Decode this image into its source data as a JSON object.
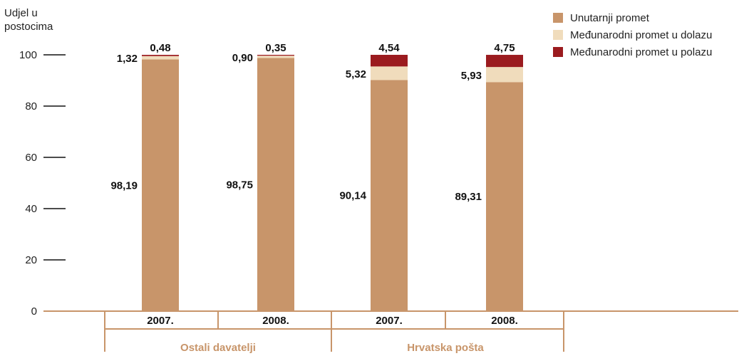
{
  "chart_data": {
    "type": "bar",
    "stacked": true,
    "title": "",
    "ylabel_lines": [
      "Udjel u",
      "postocima"
    ],
    "ylim": [
      0,
      100
    ],
    "yticks": [
      "0",
      "20",
      "40",
      "60",
      "80",
      "100"
    ],
    "categories": [
      "2007.",
      "2008.",
      "2007.",
      "2008."
    ],
    "groups": [
      {
        "label": "Ostali davatelji",
        "categories": [
          "2007.",
          "2008."
        ]
      },
      {
        "label": "Hrvatska pošta",
        "categories": [
          "2007.",
          "2008."
        ]
      }
    ],
    "series": [
      {
        "name": "Unutarnji promet",
        "color": "#c8956a",
        "values": [
          98.19,
          98.75,
          90.14,
          89.31
        ],
        "labels": [
          "98,19",
          "98,75",
          "90,14",
          "89,31"
        ]
      },
      {
        "name": "Međunarodni promet u dolazu",
        "color": "#f0dcbc",
        "values": [
          1.32,
          0.9,
          5.32,
          5.93
        ],
        "labels": [
          "1,32",
          "0,90",
          "5,32",
          "5,93"
        ]
      },
      {
        "name": "Međunarodni promet u polazu",
        "color": "#9b1b1f",
        "values": [
          0.48,
          0.35,
          4.54,
          4.75
        ],
        "labels": [
          "0,48",
          "0,35",
          "4,54",
          "4,75"
        ]
      }
    ],
    "legend_position": "top-right",
    "axis_color": "#c8956a",
    "group_label_color": "#c8956a",
    "grid": false
  }
}
